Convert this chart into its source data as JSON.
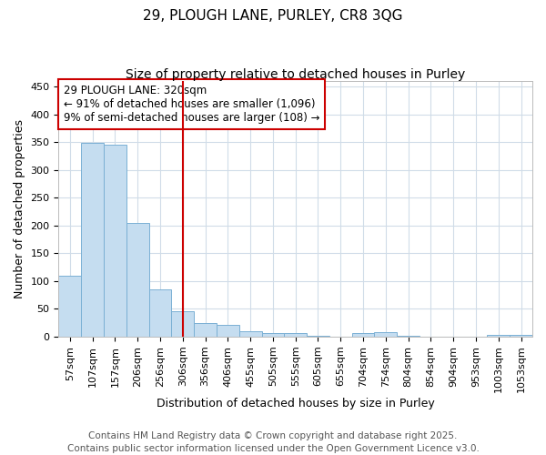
{
  "title1": "29, PLOUGH LANE, PURLEY, CR8 3QG",
  "title2": "Size of property relative to detached houses in Purley",
  "xlabel": "Distribution of detached houses by size in Purley",
  "ylabel": "Number of detached properties",
  "categories": [
    "57sqm",
    "107sqm",
    "157sqm",
    "206sqm",
    "256sqm",
    "306sqm",
    "356sqm",
    "406sqm",
    "455sqm",
    "505sqm",
    "555sqm",
    "605sqm",
    "655sqm",
    "704sqm",
    "754sqm",
    "804sqm",
    "854sqm",
    "904sqm",
    "953sqm",
    "1003sqm",
    "1053sqm"
  ],
  "values": [
    110,
    348,
    345,
    204,
    85,
    46,
    25,
    21,
    10,
    7,
    6,
    1,
    0,
    7,
    8,
    1,
    0,
    0,
    0,
    3,
    3
  ],
  "bar_color": "#c5ddf0",
  "bar_edge_color": "#7ab0d4",
  "vline_x_index": 5,
  "vline_color": "#cc0000",
  "annotation_line1": "29 PLOUGH LANE: 320sqm",
  "annotation_line2": "← 91% of detached houses are smaller (1,096)",
  "annotation_line3": "9% of semi-detached houses are larger (108) →",
  "annotation_box_color": "#ffffff",
  "annotation_box_edge_color": "#cc0000",
  "ylim": [
    0,
    460
  ],
  "yticks": [
    0,
    50,
    100,
    150,
    200,
    250,
    300,
    350,
    400,
    450
  ],
  "bg_color": "#ffffff",
  "plot_bg_color": "#ffffff",
  "grid_color": "#d0dce8",
  "footer": "Contains HM Land Registry data © Crown copyright and database right 2025.\nContains public sector information licensed under the Open Government Licence v3.0.",
  "title_fontsize": 11,
  "subtitle_fontsize": 10,
  "label_fontsize": 9,
  "tick_fontsize": 8,
  "footer_fontsize": 7.5,
  "annotation_fontsize": 8.5
}
